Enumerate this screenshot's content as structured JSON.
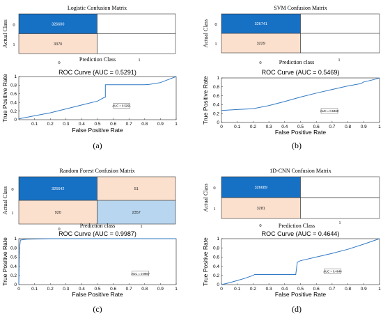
{
  "chart_data": [
    {
      "label": "(a)",
      "confusion": {
        "type": "heatmap",
        "title": "Logistic Confusion Matrix",
        "ylabel": "Actual Class",
        "xlabel": "Prediction Class",
        "row_labels": [
          "0",
          "1"
        ],
        "col_labels": [
          "0",
          "1"
        ],
        "cells": [
          [
            "326600",
            ""
          ],
          [
            "3370",
            ""
          ]
        ],
        "colors": [
          [
            "#1670c4",
            "#ffffff"
          ],
          [
            "#fbe0cd",
            "#ffffff"
          ]
        ]
      },
      "roc": {
        "type": "line",
        "title": "ROC Curve (AUC = 0.5291)",
        "xlabel": "False Positive Rate",
        "ylabel": "True Positive Rate",
        "auc_label": "AUC = 0.5291",
        "xticks": [
          "0.1",
          "0.2",
          "0.3",
          "0.4",
          "0.5",
          "0.6",
          "0.7",
          "0.8",
          "0.9",
          "1"
        ],
        "yticks": [
          "0",
          "0.2",
          "0.4",
          "0.6",
          "0.8",
          "1"
        ],
        "xlim": [
          0,
          1
        ],
        "ylim": [
          0,
          1
        ],
        "x": [
          0,
          0.1,
          0.2,
          0.3,
          0.4,
          0.5,
          0.54,
          0.55,
          0.55,
          0.6,
          0.7,
          0.8,
          0.83,
          0.9,
          0.95,
          1
        ],
        "y": [
          0.02,
          0.09,
          0.16,
          0.25,
          0.34,
          0.43,
          0.51,
          0.52,
          0.81,
          0.81,
          0.81,
          0.81,
          0.82,
          0.86,
          0.93,
          1
        ],
        "color": "#2f78c4"
      }
    },
    {
      "label": "(b)",
      "confusion": {
        "type": "heatmap",
        "title": "SVM Confusion Matrix",
        "ylabel": "Actual Class",
        "xlabel": "Prediction class",
        "row_labels": [
          "0",
          "1"
        ],
        "col_labels": [
          "0",
          "1"
        ],
        "cells": [
          [
            "326741",
            ""
          ],
          [
            "3229",
            ""
          ]
        ],
        "colors": [
          [
            "#1670c4",
            "#ffffff"
          ],
          [
            "#fbe0cd",
            "#ffffff"
          ]
        ]
      },
      "roc": {
        "type": "line",
        "title": "ROC Curve (AUC = 0.5469)",
        "xlabel": "False Positive Rate",
        "ylabel": "True Positive Rate",
        "auc_label": "AUC = 0.5469",
        "xticks": [
          "0",
          "0.1",
          "0.2",
          "0.3",
          "0.4",
          "0.5",
          "0.6",
          "0.7",
          "0.8",
          "0.9",
          "1"
        ],
        "yticks": [
          "0",
          "0.2",
          "0.4",
          "0.6",
          "0.8",
          "1"
        ],
        "xlim": [
          0,
          1
        ],
        "ylim": [
          0,
          1
        ],
        "x": [
          0,
          0.1,
          0.2,
          0.3,
          0.4,
          0.5,
          0.6,
          0.7,
          0.8,
          0.88,
          0.9,
          0.95,
          1
        ],
        "y": [
          0.27,
          0.29,
          0.31,
          0.38,
          0.47,
          0.57,
          0.66,
          0.74,
          0.82,
          0.87,
          0.91,
          0.95,
          1
        ],
        "color": "#2f78c4"
      }
    },
    {
      "label": "(c)",
      "confusion": {
        "type": "heatmap",
        "title": "Random Forest Confusion Matrix",
        "ylabel": "Actual Class",
        "xlabel": "Prediction class",
        "row_labels": [
          "0",
          "1"
        ],
        "col_labels": [
          "0",
          "1"
        ],
        "cells": [
          [
            "326642",
            "51"
          ],
          [
            "920",
            "2357"
          ]
        ],
        "colors": [
          [
            "#1670c4",
            "#fbe0cd"
          ],
          [
            "#fbe0cd",
            "#b8d6f0"
          ]
        ]
      },
      "roc": {
        "type": "line",
        "title": "ROC Curve (AUC = 0.9987)",
        "xlabel": "False Positive Rate",
        "ylabel": "True Positive Rate",
        "auc_label": "AUC = 0.9987",
        "xticks": [
          "0",
          "0.1",
          "0.2",
          "0.3",
          "0.4",
          "0.5",
          "0.6",
          "0.7",
          "0.8",
          "0.9",
          "1"
        ],
        "yticks": [
          "0",
          "0.2",
          "0.4",
          "0.6",
          "0.8",
          "1"
        ],
        "xlim": [
          0,
          1
        ],
        "ylim": [
          0,
          1
        ],
        "x": [
          0,
          0.003,
          0.006,
          0.01,
          0.05,
          0.2,
          0.5,
          1
        ],
        "y": [
          0,
          0.6,
          0.85,
          0.97,
          0.99,
          1,
          1,
          1
        ],
        "color": "#2f78c4"
      }
    },
    {
      "label": "(d)",
      "confusion": {
        "type": "heatmap",
        "title": "1D-CNN Confusion Matrix",
        "ylabel": "Actual Class",
        "xlabel": "Prediction Class",
        "row_labels": [
          "0",
          "1"
        ],
        "col_labels": [
          "0",
          "1"
        ],
        "cells": [
          [
            "326689",
            ""
          ],
          [
            "3281",
            ""
          ]
        ],
        "colors": [
          [
            "#1670c4",
            "#ffffff"
          ],
          [
            "#fbe0cd",
            "#ffffff"
          ]
        ]
      },
      "roc": {
        "type": "line",
        "title": "ROC Curve (AUC = 0.4644)",
        "xlabel": "False Positive Rate",
        "ylabel": "True Positive Rate",
        "auc_label": "AUC = 0.4644",
        "xticks": [
          "0",
          "0.1",
          "0.2",
          "0.3",
          "0.4",
          "0.5",
          "0.6",
          "0.7",
          "0.8",
          "0.9",
          "1"
        ],
        "yticks": [
          "0",
          "0.2",
          "0.4",
          "0.6",
          "0.8",
          "1"
        ],
        "xlim": [
          0,
          1
        ],
        "ylim": [
          0,
          1
        ],
        "x": [
          0,
          0.05,
          0.1,
          0.15,
          0.2,
          0.21,
          0.3,
          0.4,
          0.47,
          0.48,
          0.5,
          0.6,
          0.7,
          0.8,
          0.9,
          1
        ],
        "y": [
          0,
          0.04,
          0.09,
          0.14,
          0.2,
          0.22,
          0.22,
          0.22,
          0.22,
          0.49,
          0.52,
          0.6,
          0.68,
          0.77,
          0.88,
          1
        ],
        "color": "#2f78c4"
      }
    }
  ]
}
